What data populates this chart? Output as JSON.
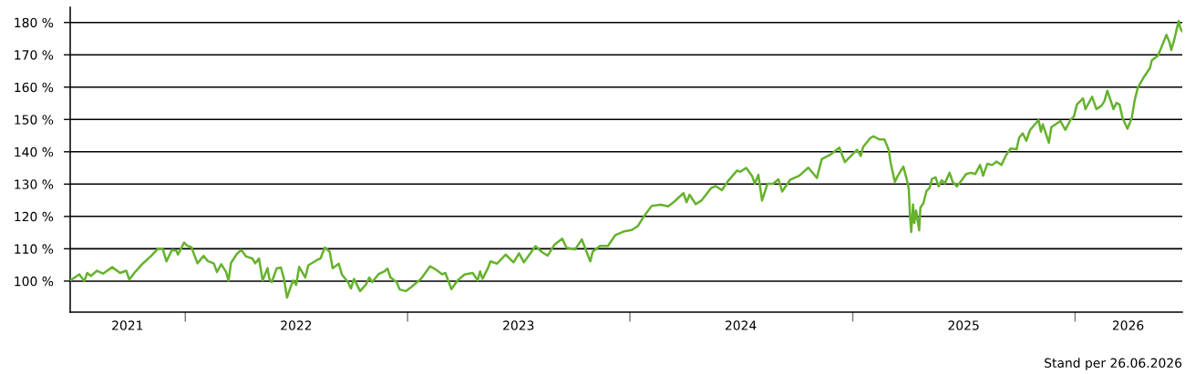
{
  "chart_data": {
    "type": "line",
    "annotations": [
      "Stand per 26.06.2026"
    ],
    "x": [
      "2021-06-26",
      "2021-07-11",
      "2021-07-19",
      "2021-07-24",
      "2021-07-30",
      "2021-08-09",
      "2021-08-19",
      "2021-09-03",
      "2021-09-16",
      "2021-09-26",
      "2021-10-01",
      "2021-10-11",
      "2021-10-23",
      "2021-11-05",
      "2021-11-17",
      "2021-11-25",
      "2021-12-01",
      "2021-12-10",
      "2021-12-17",
      "2021-12-20",
      "2021-12-30",
      "2022-01-04",
      "2022-01-11",
      "2022-01-21",
      "2022-01-31",
      "2022-02-07",
      "2022-02-17",
      "2022-02-22",
      "2022-03-01",
      "2022-03-09",
      "2022-03-13",
      "2022-03-17",
      "2022-03-27",
      "2022-04-03",
      "2022-04-11",
      "2022-04-21",
      "2022-04-26",
      "2022-05-02",
      "2022-05-08",
      "2022-05-16",
      "2022-05-19",
      "2022-05-23",
      "2022-05-31",
      "2022-06-07",
      "2022-06-12",
      "2022-06-17",
      "2022-06-22",
      "2022-06-27",
      "2022-07-02",
      "2022-07-07",
      "2022-07-17",
      "2022-07-22",
      "2022-08-06",
      "2022-08-11",
      "2022-08-18",
      "2022-08-26",
      "2022-08-31",
      "2022-09-10",
      "2022-09-15",
      "2022-09-25",
      "2022-09-30",
      "2022-10-05",
      "2022-10-15",
      "2022-10-25",
      "2022-10-30",
      "2022-11-04",
      "2022-11-14",
      "2022-11-24",
      "2022-11-29",
      "2022-12-04",
      "2022-12-14",
      "2022-12-19",
      "2022-12-29",
      "2023-01-08",
      "2023-01-23",
      "2023-02-02",
      "2023-02-07",
      "2023-02-17",
      "2023-02-27",
      "2023-03-04",
      "2023-03-14",
      "2023-03-24",
      "2023-04-05",
      "2023-04-18",
      "2023-04-26",
      "2023-04-30",
      "2023-05-04",
      "2023-05-13",
      "2023-05-17",
      "2023-05-28",
      "2023-06-11",
      "2023-06-24",
      "2023-07-03",
      "2023-07-11",
      "2023-07-30",
      "2023-08-10",
      "2023-08-19",
      "2023-08-30",
      "2023-09-12",
      "2023-09-19",
      "2023-10-03",
      "2023-10-14",
      "2023-10-28",
      "2023-11-01",
      "2023-11-13",
      "2023-11-26",
      "2023-12-08",
      "2023-12-23",
      "2024-01-04",
      "2024-01-14",
      "2024-01-24",
      "2024-02-06",
      "2024-02-21",
      "2024-03-04",
      "2024-03-14",
      "2024-03-29",
      "2024-04-03",
      "2024-04-08",
      "2024-04-18",
      "2024-04-28",
      "2024-05-13",
      "2024-05-21",
      "2024-05-31",
      "2024-06-10",
      "2024-06-25",
      "2024-06-30",
      "2024-07-10",
      "2024-07-20",
      "2024-07-24",
      "2024-07-30",
      "2024-08-05",
      "2024-08-14",
      "2024-08-23",
      "2024-09-01",
      "2024-09-07",
      "2024-09-20",
      "2024-10-05",
      "2024-10-20",
      "2024-11-03",
      "2024-11-11",
      "2024-11-26",
      "2024-12-10",
      "2024-12-19",
      "2024-12-29",
      "2025-01-08",
      "2025-01-14",
      "2025-01-18",
      "2025-01-30",
      "2025-02-04",
      "2025-02-14",
      "2025-02-22",
      "2025-03-01",
      "2025-03-04",
      "2025-03-11",
      "2025-03-16",
      "2025-03-25",
      "2025-03-31",
      "2025-04-03",
      "2025-04-05",
      "2025-04-07",
      "2025-04-10",
      "2025-04-12",
      "2025-04-15",
      "2025-04-20",
      "2025-04-22",
      "2025-04-27",
      "2025-05-02",
      "2025-05-07",
      "2025-05-11",
      "2025-05-17",
      "2025-05-22",
      "2025-05-27",
      "2025-06-01",
      "2025-06-09",
      "2025-06-14",
      "2025-06-21",
      "2025-06-29",
      "2025-07-06",
      "2025-07-14",
      "2025-07-21",
      "2025-07-29",
      "2025-08-03",
      "2025-08-10",
      "2025-08-18",
      "2025-08-25",
      "2025-09-02",
      "2025-09-09",
      "2025-09-17",
      "2025-09-27",
      "2025-10-01",
      "2025-10-07",
      "2025-10-13",
      "2025-10-19",
      "2025-11-02",
      "2025-11-06",
      "2025-11-09",
      "2025-11-19",
      "2025-11-23",
      "2025-12-08",
      "2025-12-16",
      "2025-12-25",
      "2025-12-30",
      "2026-01-04",
      "2026-01-14",
      "2026-01-18",
      "2026-01-29",
      "2026-02-05",
      "2026-02-13",
      "2026-02-18",
      "2026-02-23",
      "2026-02-28",
      "2026-03-05",
      "2026-03-10",
      "2026-03-15",
      "2026-03-20",
      "2026-03-28",
      "2026-04-04",
      "2026-04-09",
      "2026-04-14",
      "2026-04-24",
      "2026-05-04",
      "2026-05-07",
      "2026-05-17",
      "2026-05-22",
      "2026-05-31",
      "2026-06-05",
      "2026-06-08",
      "2026-06-13",
      "2026-06-20",
      "2026-06-23",
      "2026-06-26"
    ],
    "series": [
      {
        "color": "#66b22e",
        "values": [
          100.2,
          102.1,
          100.0,
          102.5,
          101.6,
          103.2,
          102.3,
          104.3,
          102.5,
          103.2,
          100.5,
          102.9,
          105.4,
          107.6,
          110.0,
          109.9,
          106.1,
          109.6,
          109.5,
          108.2,
          111.9,
          111.0,
          110.5,
          105.5,
          107.8,
          106.2,
          105.4,
          102.8,
          105.2,
          102.8,
          100.1,
          105.6,
          108.5,
          109.6,
          107.6,
          107.0,
          105.5,
          107.0,
          100.2,
          104.0,
          100.7,
          99.7,
          103.9,
          104.2,
          100.7,
          94.9,
          97.7,
          100.2,
          98.8,
          104.4,
          101.1,
          104.9,
          106.6,
          107.0,
          110.4,
          109.1,
          104.0,
          105.4,
          102.1,
          99.7,
          97.7,
          100.7,
          96.9,
          99.0,
          101.1,
          99.7,
          102.1,
          103.0,
          103.9,
          101.1,
          99.7,
          97.4,
          96.9,
          98.3,
          100.7,
          103.3,
          104.6,
          103.5,
          102.1,
          102.5,
          97.5,
          100.2,
          102.1,
          102.5,
          100.2,
          103.0,
          100.7,
          104.0,
          106.1,
          105.4,
          108.2,
          105.8,
          108.6,
          105.8,
          110.8,
          108.9,
          107.9,
          111.2,
          113.1,
          110.3,
          109.8,
          112.9,
          106.1,
          109.1,
          110.9,
          110.9,
          114.2,
          115.4,
          115.8,
          117.0,
          120.0,
          123.3,
          123.6,
          123.1,
          124.6,
          127.2,
          124.4,
          126.7,
          123.8,
          125.0,
          128.7,
          129.4,
          128.1,
          130.9,
          134.2,
          133.8,
          135.0,
          132.4,
          130.1,
          132.9,
          124.9,
          130.1,
          130.1,
          131.5,
          127.7,
          131.3,
          132.6,
          135.1,
          131.9,
          137.7,
          139.2,
          141.3,
          136.8,
          138.7,
          140.6,
          138.7,
          141.5,
          144.3,
          144.8,
          143.8,
          143.8,
          140.6,
          136.8,
          130.7,
          132.6,
          135.4,
          131.2,
          128.4,
          119.9,
          115.2,
          123.7,
          118.0,
          121.8,
          115.7,
          122.7,
          124.1,
          127.9,
          128.8,
          131.6,
          132.1,
          129.3,
          131.2,
          130.2,
          133.5,
          130.7,
          129.3,
          131.2,
          133.1,
          133.5,
          133.1,
          135.9,
          132.6,
          136.3,
          135.9,
          137.0,
          135.9,
          138.7,
          141.0,
          140.8,
          144.3,
          145.7,
          143.4,
          146.7,
          149.8,
          146.2,
          148.5,
          142.8,
          147.6,
          149.5,
          146.8,
          150.0,
          150.9,
          154.6,
          156.5,
          153.2,
          157.0,
          153.2,
          154.2,
          155.6,
          158.9,
          156.1,
          153.2,
          155.1,
          154.6,
          150.4,
          147.1,
          150.4,
          156.1,
          159.8,
          163.1,
          165.9,
          168.3,
          169.7,
          172.0,
          176.2,
          173.9,
          171.5,
          174.8,
          180.5,
          178.1,
          177.2
        ]
      }
    ],
    "xlim": [
      "2021-06-26",
      "2026-06-26"
    ],
    "xticks": [
      {
        "value": "2021-09-28",
        "label": "2021"
      },
      {
        "value": "2022-01-01",
        "label": null
      },
      {
        "value": "2022-07-02",
        "label": "2022"
      },
      {
        "value": "2023-01-01",
        "label": null
      },
      {
        "value": "2023-07-02",
        "label": "2023"
      },
      {
        "value": "2024-01-01",
        "label": null
      },
      {
        "value": "2024-07-01",
        "label": "2024"
      },
      {
        "value": "2025-01-01",
        "label": null
      },
      {
        "value": "2025-07-02",
        "label": "2025"
      },
      {
        "value": "2026-01-01",
        "label": null
      },
      {
        "value": "2026-03-29",
        "label": "2026"
      }
    ],
    "ylim": [
      90.4,
      184.7
    ],
    "yticks": [
      {
        "value": 100,
        "label": "100 %"
      },
      {
        "value": 110,
        "label": "110 %"
      },
      {
        "value": 120,
        "label": "120 %"
      },
      {
        "value": 130,
        "label": "130 %"
      },
      {
        "value": 140,
        "label": "140 %"
      },
      {
        "value": 150,
        "label": "150 %"
      },
      {
        "value": 160,
        "label": "160 %"
      },
      {
        "value": 170,
        "label": "170 %"
      },
      {
        "value": 180,
        "label": "180 %"
      }
    ],
    "grid": "y"
  }
}
